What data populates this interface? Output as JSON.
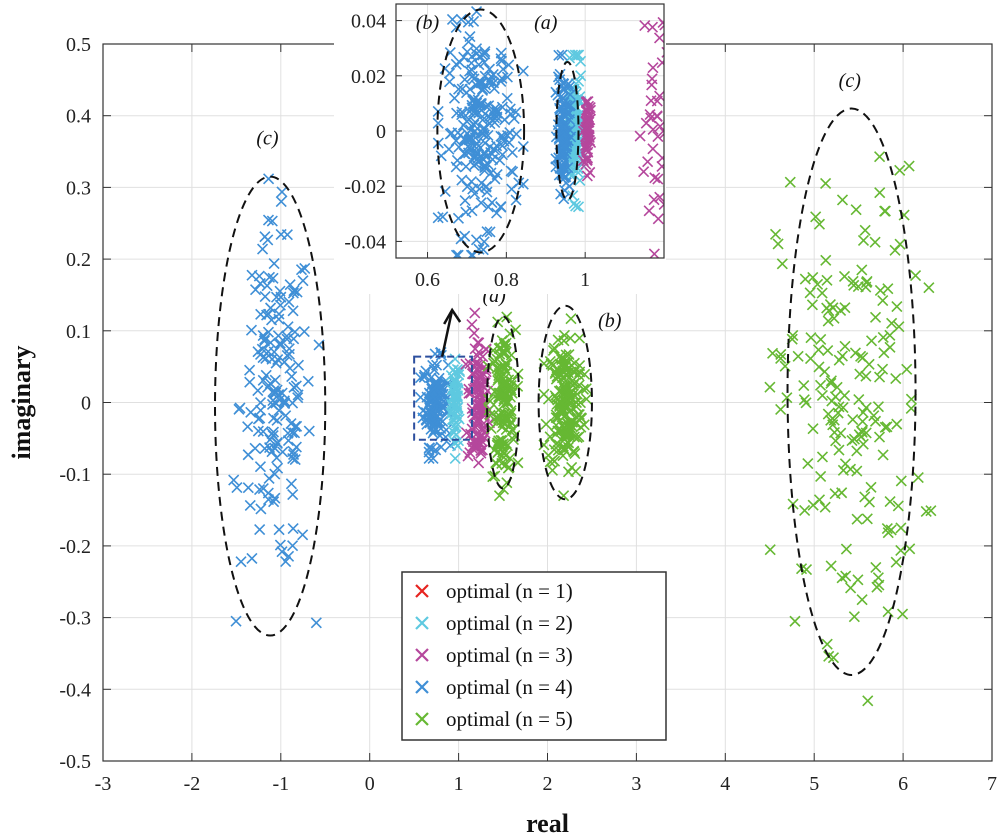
{
  "chart_data": {
    "type": "scatter",
    "title": "",
    "xlabel": "real",
    "ylabel": "imaginary",
    "xlim": [
      -3,
      7
    ],
    "ylim": [
      -0.5,
      0.5
    ],
    "xticks": [
      -3,
      -2,
      -1,
      0,
      1,
      2,
      3,
      4,
      5,
      6,
      7
    ],
    "yticks": [
      -0.5,
      -0.4,
      -0.3,
      -0.2,
      -0.1,
      0,
      0.1,
      0.2,
      0.3,
      0.4,
      0.5
    ],
    "xtick_labels": [
      "-3",
      "-2",
      "-1",
      "0",
      "1",
      "2",
      "3",
      "4",
      "5",
      "6",
      "7"
    ],
    "ytick_labels": [
      "-0.5",
      "-0.4",
      "-0.3",
      "-0.2",
      "-0.1",
      "0",
      "0.1",
      "0.2",
      "0.3",
      "0.4",
      "0.5"
    ],
    "grid": true,
    "legend_position": "bottom-center",
    "series": [
      {
        "name": "optimal (n = 1)",
        "color": "#e6231f",
        "cluster": {
          "cx": 1.0,
          "sx": 0.0,
          "sy": 0.0,
          "n": 0
        }
      },
      {
        "name": "optimal (n = 2)",
        "color": "#5ec9e0",
        "cluster": {
          "cx": 0.97,
          "sx": 0.025,
          "sy": 0.03,
          "n": 60
        }
      },
      {
        "name": "optimal (n = 3)",
        "color": "#b5479c",
        "cluster": {
          "cx": 1.22,
          "sx": 0.06,
          "sy": 0.05,
          "n": 110
        }
      },
      {
        "name": "optimal (n = 4)",
        "color": "#3f8fd6",
        "clusters": [
          {
            "cx": 0.74,
            "sx": 0.07,
            "sy": 0.03,
            "n": 120
          },
          {
            "cx": -1.05,
            "sx": 0.2,
            "sy": 0.12,
            "n": 170
          }
        ]
      },
      {
        "name": "optimal (n = 5)",
        "color": "#66b833",
        "clusters": [
          {
            "cx": 1.5,
            "sx": 0.07,
            "sy": 0.05,
            "n": 140
          },
          {
            "cx": 2.2,
            "sx": 0.1,
            "sy": 0.05,
            "n": 180
          },
          {
            "cx": 5.4,
            "sx": 0.4,
            "sy": 0.16,
            "n": 190
          }
        ]
      }
    ],
    "ellipses": [
      {
        "label": "(a)",
        "cx": 1.5,
        "cy": 0.0,
        "rx": 0.18,
        "ry": 0.12
      },
      {
        "label": "(b)",
        "cx": 2.2,
        "cy": 0.0,
        "rx": 0.3,
        "ry": 0.135
      },
      {
        "label": "(c)",
        "cx": -1.12,
        "cy": -0.005,
        "rx": 0.62,
        "ry": 0.32
      },
      {
        "label": "(c)",
        "cx": 5.42,
        "cy": 0.015,
        "rx": 0.72,
        "ry": 0.395
      }
    ],
    "zoom_box": {
      "x": [
        0.5,
        1.15
      ],
      "y": [
        -0.052,
        0.064
      ]
    },
    "inset": {
      "xlim": [
        0.52,
        1.2
      ],
      "ylim": [
        -0.046,
        0.046
      ],
      "xticks": [
        0.6,
        0.8,
        1
      ],
      "yticks": [
        -0.04,
        -0.02,
        0,
        0.02,
        0.04
      ],
      "xtick_labels": [
        "0.6",
        "0.8",
        "1"
      ],
      "ytick_labels": [
        "-0.04",
        "-0.02",
        "0",
        "0.02",
        "0.04"
      ],
      "ellipses": [
        {
          "label": "(b)",
          "cx": 0.735,
          "cy": 0.0,
          "rx": 0.11,
          "ry": 0.044
        },
        {
          "label": "(a)",
          "cx": 0.955,
          "cy": 0.0,
          "rx": 0.028,
          "ry": 0.025
        }
      ]
    }
  }
}
